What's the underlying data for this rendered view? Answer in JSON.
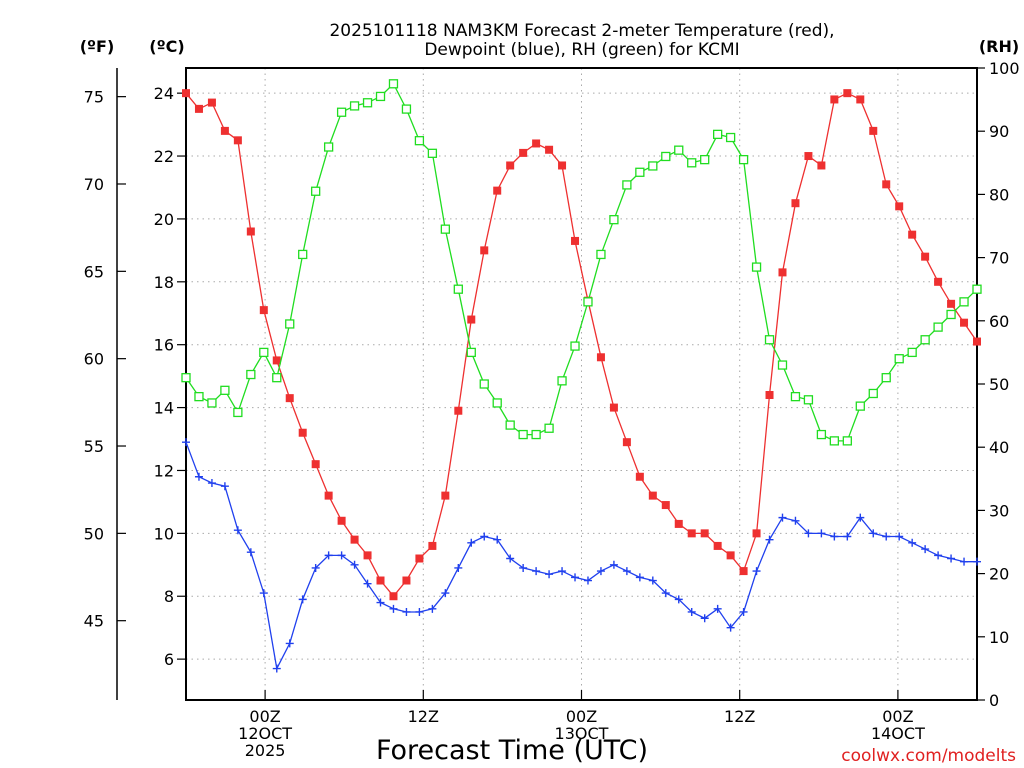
{
  "chart_data": {
    "type": "line",
    "title_line1": "2025101118 NAM3KM Forecast 2-meter Temperature (red),",
    "title_line2": "Dewpoint (blue), RH (green) for KCMI",
    "xlabel": "Forecast Time (UTC)",
    "credit": "coolwx.com/modelts",
    "unit_f": "(ºF)",
    "unit_c": "(ºC)",
    "unit_rh": "(RH)",
    "x_hours_range": [
      -5,
      45
    ],
    "x_ticks": [
      {
        "hour": 0,
        "lines": [
          "00Z",
          "12OCT",
          "2025"
        ]
      },
      {
        "hour": 10,
        "lines": [
          "12Z"
        ]
      },
      {
        "hour": 20,
        "lines": [
          "00Z",
          "13OCT"
        ]
      },
      {
        "hour": 30,
        "lines": [
          "12Z"
        ]
      },
      {
        "hour": 40,
        "lines": [
          "00Z",
          "14OCT"
        ]
      }
    ],
    "y_celsius_range": [
      4.7,
      24.8
    ],
    "y_celsius_ticks": [
      "6",
      "8",
      "10",
      "12",
      "14",
      "16",
      "18",
      "20",
      "22",
      "24"
    ],
    "y_fahrenheit_ticks": [
      "45",
      "50",
      "55",
      "60",
      "65",
      "70",
      "75"
    ],
    "y_rh_range": [
      0,
      100
    ],
    "y_rh_ticks": [
      "0",
      "10",
      "20",
      "30",
      "40",
      "50",
      "60",
      "70",
      "80",
      "90",
      "100"
    ],
    "series": [
      {
        "name": "2-meter Temperature",
        "color": "#ee3030",
        "axis": "celsius",
        "marker": "filled-square",
        "values": [
          24.0,
          23.5,
          23.7,
          22.8,
          22.5,
          19.6,
          17.1,
          15.5,
          14.3,
          13.2,
          12.2,
          11.2,
          10.4,
          9.8,
          9.3,
          8.5,
          8.0,
          8.5,
          9.2,
          9.6,
          11.2,
          13.9,
          16.8,
          19.0,
          20.9,
          21.7,
          22.1,
          22.4,
          22.2,
          21.7,
          19.3,
          17.4,
          15.6,
          14.0,
          12.9,
          11.8,
          11.2,
          10.9,
          10.3,
          10.0,
          10.0,
          9.6,
          9.3,
          8.8,
          10.0,
          14.4,
          18.3,
          20.5,
          22.0,
          21.7,
          23.8,
          24.0,
          23.8,
          22.8,
          21.1,
          20.4,
          19.5,
          18.8,
          18.0,
          17.3,
          16.7,
          16.1
        ]
      },
      {
        "name": "Dewpoint",
        "color": "#2040ee",
        "axis": "celsius",
        "marker": "plus",
        "values": [
          12.9,
          11.8,
          11.6,
          11.5,
          10.1,
          9.4,
          8.1,
          5.7,
          6.5,
          7.9,
          8.9,
          9.3,
          9.3,
          9.0,
          8.4,
          7.8,
          7.6,
          7.5,
          7.5,
          7.6,
          8.1,
          8.9,
          9.7,
          9.9,
          9.8,
          9.2,
          8.9,
          8.8,
          8.7,
          8.8,
          8.6,
          8.5,
          8.8,
          9.0,
          8.8,
          8.6,
          8.5,
          8.1,
          7.9,
          7.5,
          7.3,
          7.6,
          7.0,
          7.5,
          8.8,
          9.8,
          10.5,
          10.4,
          10.0,
          10.0,
          9.9,
          9.9,
          10.5,
          10.0,
          9.9,
          9.9,
          9.7,
          9.5,
          9.3,
          9.2,
          9.1,
          9.1
        ]
      },
      {
        "name": "RH",
        "color": "#20dd20",
        "axis": "rh",
        "marker": "open-square",
        "values": [
          51.0,
          48.0,
          47.0,
          49.0,
          45.5,
          51.5,
          55.0,
          51.0,
          59.5,
          70.5,
          80.5,
          87.5,
          93.0,
          94.0,
          94.5,
          95.5,
          97.5,
          93.5,
          88.5,
          86.5,
          74.5,
          65.0,
          55.0,
          50.0,
          47.0,
          43.5,
          42.0,
          42.0,
          43.0,
          50.5,
          56.0,
          63.0,
          70.5,
          76.0,
          81.5,
          83.5,
          84.5,
          86.0,
          87.0,
          85.0,
          85.5,
          89.5,
          89.0,
          85.5,
          68.5,
          57.0,
          53.0,
          48.0,
          47.5,
          42.0,
          41.0,
          41.0,
          46.5,
          48.5,
          51.0,
          54.0,
          55.0,
          57.0,
          59.0,
          61.0,
          63.0,
          65.0
        ]
      }
    ]
  }
}
